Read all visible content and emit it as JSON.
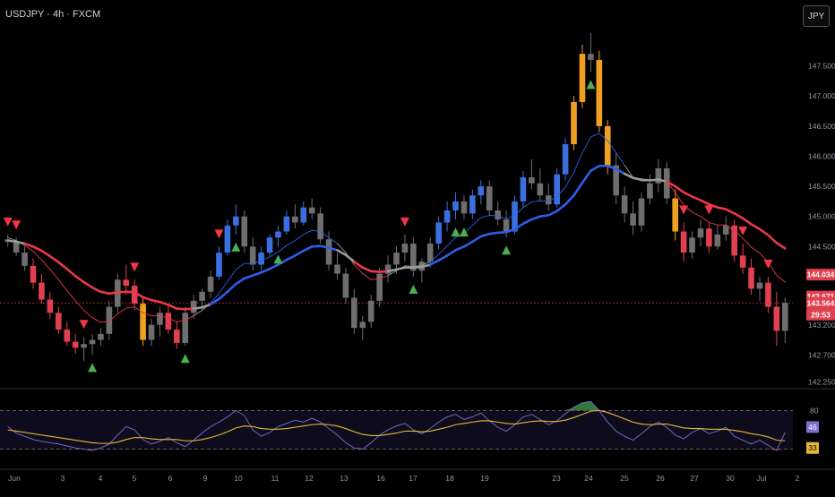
{
  "header": {
    "symbol": "USDJPY",
    "interval": "4h",
    "exchange": "FXCM",
    "title": "USDJPY · 4h · FXCM",
    "currency_button": "JPY"
  },
  "colors": {
    "background": "#000000",
    "bull_blue": "#3b6fe0",
    "bear_red": "#e0404f",
    "strong_orange": "#f0a020",
    "neutral_gray": "#6e6e6e",
    "ema_up": "#2e5ee8",
    "ema_down": "#e8384a",
    "ema_neutral": "#9a9a9a",
    "buy_signal": "#4caf50",
    "sell_signal": "#f23645",
    "osc_fast": "#7b6fd0",
    "osc_slow": "#e8b83a"
  },
  "price_axis": {
    "ticks": [
      "147.500",
      "147.000",
      "146.500",
      "146.000",
      "145.500",
      "145.000",
      "144.500",
      "144.000",
      "143.500",
      "143.200",
      "142.700",
      "142.250"
    ],
    "badges": [
      {
        "value": "144.034",
        "color": "#e0404f"
      },
      {
        "value": "143.671",
        "color": "#e0404f"
      },
      {
        "value": "143.564",
        "color": "#e0404f"
      },
      {
        "value": "29:53",
        "color": "#e0404f"
      }
    ]
  },
  "time_axis": {
    "labels": [
      "Jun",
      "3",
      "4",
      "5",
      "6",
      "9",
      "10",
      "11",
      "12",
      "13",
      "16",
      "17",
      "18",
      "19",
      "23",
      "24",
      "25",
      "26",
      "27",
      "30",
      "Jul",
      "2"
    ]
  },
  "oscillator": {
    "upper_level": "80",
    "lower_level": "20",
    "badges": [
      {
        "value": "46",
        "color": "#7b6fd0"
      },
      {
        "value": "33",
        "color": "#e8b83a"
      }
    ]
  },
  "chart_data": [
    {
      "type": "candlestick",
      "symbol": "USDJPY",
      "interval": "4h",
      "ylim": [
        142.2,
        148.0
      ],
      "last_price": 143.564,
      "candles_ohlc": [
        [
          144.62,
          144.7,
          144.5,
          144.58
        ],
        [
          144.58,
          144.65,
          144.35,
          144.4
        ],
        [
          144.4,
          144.5,
          144.1,
          144.18
        ],
        [
          144.18,
          144.3,
          143.8,
          143.9
        ],
        [
          143.9,
          144.05,
          143.55,
          143.62
        ],
        [
          143.62,
          143.75,
          143.3,
          143.4
        ],
        [
          143.4,
          143.5,
          143.05,
          143.12
        ],
        [
          143.12,
          143.25,
          142.85,
          142.92
        ],
        [
          142.92,
          143.05,
          142.72,
          142.82
        ],
        [
          142.82,
          143.0,
          142.6,
          142.88
        ],
        [
          142.88,
          143.05,
          142.7,
          142.95
        ],
        [
          142.95,
          143.15,
          142.85,
          143.05
        ],
        [
          143.05,
          143.6,
          142.95,
          143.5
        ],
        [
          143.5,
          144.05,
          143.4,
          143.95
        ],
        [
          143.95,
          144.2,
          143.7,
          143.85
        ],
        [
          143.85,
          143.95,
          143.45,
          143.55
        ],
        [
          143.55,
          143.65,
          142.85,
          142.95
        ],
        [
          142.95,
          143.3,
          142.85,
          143.2
        ],
        [
          143.2,
          143.5,
          143.0,
          143.4
        ],
        [
          143.4,
          143.55,
          143.05,
          143.12
        ],
        [
          143.12,
          143.25,
          142.8,
          142.9
        ],
        [
          142.9,
          143.5,
          142.85,
          143.4
        ],
        [
          143.4,
          143.7,
          143.3,
          143.6
        ],
        [
          143.6,
          143.8,
          143.45,
          143.75
        ],
        [
          143.75,
          144.1,
          143.65,
          144.0
        ],
        [
          144.0,
          144.5,
          143.95,
          144.4
        ],
        [
          144.4,
          144.95,
          144.35,
          144.85
        ],
        [
          144.85,
          145.2,
          144.7,
          145.0
        ],
        [
          145.0,
          145.1,
          144.4,
          144.5
        ],
        [
          144.5,
          144.65,
          144.1,
          144.2
        ],
        [
          144.2,
          144.5,
          144.1,
          144.4
        ],
        [
          144.4,
          144.7,
          144.35,
          144.65
        ],
        [
          144.65,
          144.85,
          144.5,
          144.75
        ],
        [
          144.75,
          145.1,
          144.7,
          145.0
        ],
        [
          145.0,
          145.2,
          144.8,
          144.9
        ],
        [
          144.9,
          145.25,
          144.85,
          145.15
        ],
        [
          145.15,
          145.3,
          144.95,
          145.05
        ],
        [
          145.05,
          145.15,
          144.55,
          144.62
        ],
        [
          144.62,
          144.75,
          144.1,
          144.2
        ],
        [
          144.2,
          144.4,
          143.95,
          144.05
        ],
        [
          144.05,
          144.15,
          143.55,
          143.65
        ],
        [
          143.65,
          143.8,
          143.05,
          143.15
        ],
        [
          143.15,
          143.35,
          142.95,
          143.25
        ],
        [
          143.25,
          143.7,
          143.15,
          143.6
        ],
        [
          143.6,
          144.15,
          143.5,
          144.05
        ],
        [
          144.05,
          144.35,
          143.9,
          144.2
        ],
        [
          144.2,
          144.5,
          144.05,
          144.4
        ],
        [
          144.4,
          144.7,
          144.25,
          144.55
        ],
        [
          144.55,
          144.65,
          144.0,
          144.1
        ],
        [
          144.1,
          144.3,
          143.9,
          144.25
        ],
        [
          144.25,
          144.65,
          144.15,
          144.55
        ],
        [
          144.55,
          145.0,
          144.45,
          144.9
        ],
        [
          144.9,
          145.25,
          144.75,
          145.1
        ],
        [
          145.1,
          145.4,
          144.95,
          145.25
        ],
        [
          145.25,
          145.35,
          144.95,
          145.05
        ],
        [
          145.05,
          145.45,
          144.95,
          145.35
        ],
        [
          145.35,
          145.6,
          145.2,
          145.5
        ],
        [
          145.5,
          145.6,
          145.0,
          145.1
        ],
        [
          145.1,
          145.25,
          144.85,
          144.95
        ],
        [
          144.95,
          145.1,
          144.65,
          144.75
        ],
        [
          144.75,
          145.35,
          144.7,
          145.25
        ],
        [
          145.25,
          145.75,
          145.15,
          145.65
        ],
        [
          145.65,
          145.95,
          145.45,
          145.55
        ],
        [
          145.55,
          145.8,
          145.25,
          145.35
        ],
        [
          145.35,
          145.55,
          145.1,
          145.2
        ],
        [
          145.2,
          145.8,
          145.15,
          145.7
        ],
        [
          145.7,
          146.3,
          145.6,
          146.2
        ],
        [
          146.2,
          147.0,
          146.1,
          146.9
        ],
        [
          146.9,
          147.85,
          146.8,
          147.7
        ],
        [
          147.7,
          148.05,
          147.4,
          147.6
        ],
        [
          147.6,
          147.75,
          146.4,
          146.5
        ],
        [
          146.5,
          146.6,
          145.7,
          145.85
        ],
        [
          145.85,
          146.05,
          145.2,
          145.35
        ],
        [
          145.35,
          145.5,
          144.9,
          145.05
        ],
        [
          145.05,
          145.25,
          144.7,
          144.85
        ],
        [
          144.85,
          145.4,
          144.75,
          145.3
        ],
        [
          145.3,
          145.7,
          145.2,
          145.55
        ],
        [
          145.55,
          145.95,
          145.4,
          145.8
        ],
        [
          145.8,
          145.9,
          145.2,
          145.3
        ],
        [
          145.3,
          145.45,
          144.6,
          144.75
        ],
        [
          144.75,
          144.9,
          144.25,
          144.4
        ],
        [
          144.4,
          144.75,
          144.3,
          144.65
        ],
        [
          144.65,
          144.95,
          144.5,
          144.8
        ],
        [
          144.8,
          144.9,
          144.4,
          144.5
        ],
        [
          144.5,
          144.85,
          144.45,
          144.7
        ],
        [
          144.7,
          145.0,
          144.6,
          144.85
        ],
        [
          144.85,
          144.95,
          144.25,
          144.35
        ],
        [
          144.35,
          144.55,
          144.05,
          144.15
        ],
        [
          144.15,
          144.3,
          143.7,
          143.8
        ],
        [
          143.8,
          144.0,
          143.6,
          143.9
        ],
        [
          143.9,
          144.0,
          143.4,
          143.5
        ],
        [
          143.5,
          143.75,
          142.85,
          143.1
        ],
        [
          143.1,
          143.65,
          142.9,
          143.564
        ]
      ],
      "ema_fast": [
        144.65,
        144.6,
        144.52,
        144.42,
        144.28,
        144.12,
        143.95,
        143.77,
        143.6,
        143.44,
        143.32,
        143.24,
        143.26,
        143.38,
        143.48,
        143.5,
        143.4,
        143.35,
        143.35,
        143.31,
        143.25,
        143.28,
        143.35,
        143.44,
        143.56,
        143.72,
        143.92,
        144.12,
        144.22,
        144.22,
        144.26,
        144.33,
        144.41,
        144.52,
        144.6,
        144.7,
        144.77,
        144.75,
        144.65,
        144.55,
        144.4,
        144.2,
        144.05,
        143.95,
        143.97,
        144.02,
        144.1,
        144.18,
        144.17,
        144.19,
        144.25,
        144.37,
        144.51,
        144.65,
        144.73,
        144.85,
        144.98,
        145.02,
        145.01,
        144.96,
        145.02,
        145.15,
        145.24,
        145.26,
        145.25,
        145.33,
        145.49,
        145.73,
        146.06,
        146.32,
        146.38,
        146.26,
        146.06,
        145.85,
        145.65,
        145.59,
        145.59,
        145.63,
        145.57,
        145.4,
        145.19,
        145.07,
        145.0,
        144.9,
        144.86,
        144.86,
        144.76,
        144.64,
        144.49,
        144.39,
        144.24,
        144.02,
        143.91
      ],
      "ema_slow": [
        144.6,
        144.58,
        144.55,
        144.5,
        144.43,
        144.34,
        144.24,
        144.13,
        144.01,
        143.91,
        143.82,
        143.75,
        143.72,
        143.74,
        143.75,
        143.74,
        143.66,
        143.61,
        143.58,
        143.53,
        143.47,
        143.46,
        143.47,
        143.49,
        143.54,
        143.63,
        143.75,
        143.88,
        143.97,
        144.02,
        144.07,
        144.13,
        144.2,
        144.28,
        144.35,
        144.43,
        144.5,
        144.51,
        144.48,
        144.44,
        144.36,
        144.25,
        144.15,
        144.09,
        144.08,
        144.09,
        144.12,
        144.15,
        144.15,
        144.16,
        144.2,
        144.27,
        144.35,
        144.44,
        144.5,
        144.58,
        144.67,
        144.71,
        144.73,
        144.74,
        144.79,
        144.88,
        144.95,
        145.0,
        145.02,
        145.09,
        145.2,
        145.35,
        145.56,
        145.76,
        145.84,
        145.84,
        145.79,
        145.71,
        145.64,
        145.61,
        145.6,
        145.61,
        145.58,
        145.5,
        145.4,
        145.33,
        145.27,
        145.2,
        145.15,
        145.12,
        145.05,
        144.97,
        144.87,
        144.79,
        144.69,
        144.56,
        144.47
      ],
      "buy_signals_at_index": [
        10,
        21,
        27,
        32,
        48,
        53,
        54,
        59,
        69
      ],
      "sell_signals_at_index": [
        0,
        1,
        9,
        15,
        25,
        47,
        80,
        83,
        87,
        90
      ]
    },
    {
      "type": "line",
      "name": "",
      "ylim": [
        0,
        100
      ],
      "levels": [
        20,
        80
      ],
      "series": [
        {
          "values": [
            55,
            45,
            40,
            35,
            32,
            30,
            28,
            25,
            22,
            20,
            18,
            22,
            28,
            42,
            55,
            50,
            35,
            28,
            32,
            38,
            30,
            24,
            34,
            45,
            55,
            62,
            70,
            80,
            72,
            50,
            40,
            46,
            55,
            60,
            65,
            62,
            68,
            62,
            52,
            42,
            30,
            22,
            20,
            30,
            42,
            50,
            56,
            60,
            50,
            44,
            52,
            62,
            70,
            74,
            66,
            70,
            76,
            64,
            54,
            48,
            58,
            70,
            74,
            66,
            58,
            64,
            75,
            85,
            92,
            94,
            80,
            62,
            48,
            40,
            34,
            44,
            55,
            62,
            54,
            42,
            36,
            46,
            52,
            44,
            48,
            54,
            40,
            34,
            28,
            34,
            26,
            18,
            46
          ]
        },
        {
          "values": [
            50,
            48,
            46,
            44,
            42,
            40,
            38,
            36,
            34,
            32,
            30,
            29,
            29,
            31,
            35,
            38,
            38,
            36,
            35,
            35,
            35,
            33,
            33,
            35,
            38,
            42,
            47,
            53,
            56,
            55,
            52,
            51,
            51,
            52,
            54,
            56,
            58,
            59,
            58,
            56,
            52,
            47,
            43,
            41,
            41,
            43,
            45,
            48,
            48,
            47,
            48,
            51,
            54,
            58,
            60,
            62,
            64,
            64,
            62,
            60,
            59,
            61,
            63,
            64,
            63,
            63,
            65,
            69,
            74,
            79,
            80,
            77,
            72,
            67,
            62,
            59,
            58,
            59,
            59,
            56,
            53,
            52,
            52,
            51,
            51,
            51,
            49,
            47,
            44,
            42,
            39,
            34,
            33
          ]
        }
      ]
    }
  ]
}
